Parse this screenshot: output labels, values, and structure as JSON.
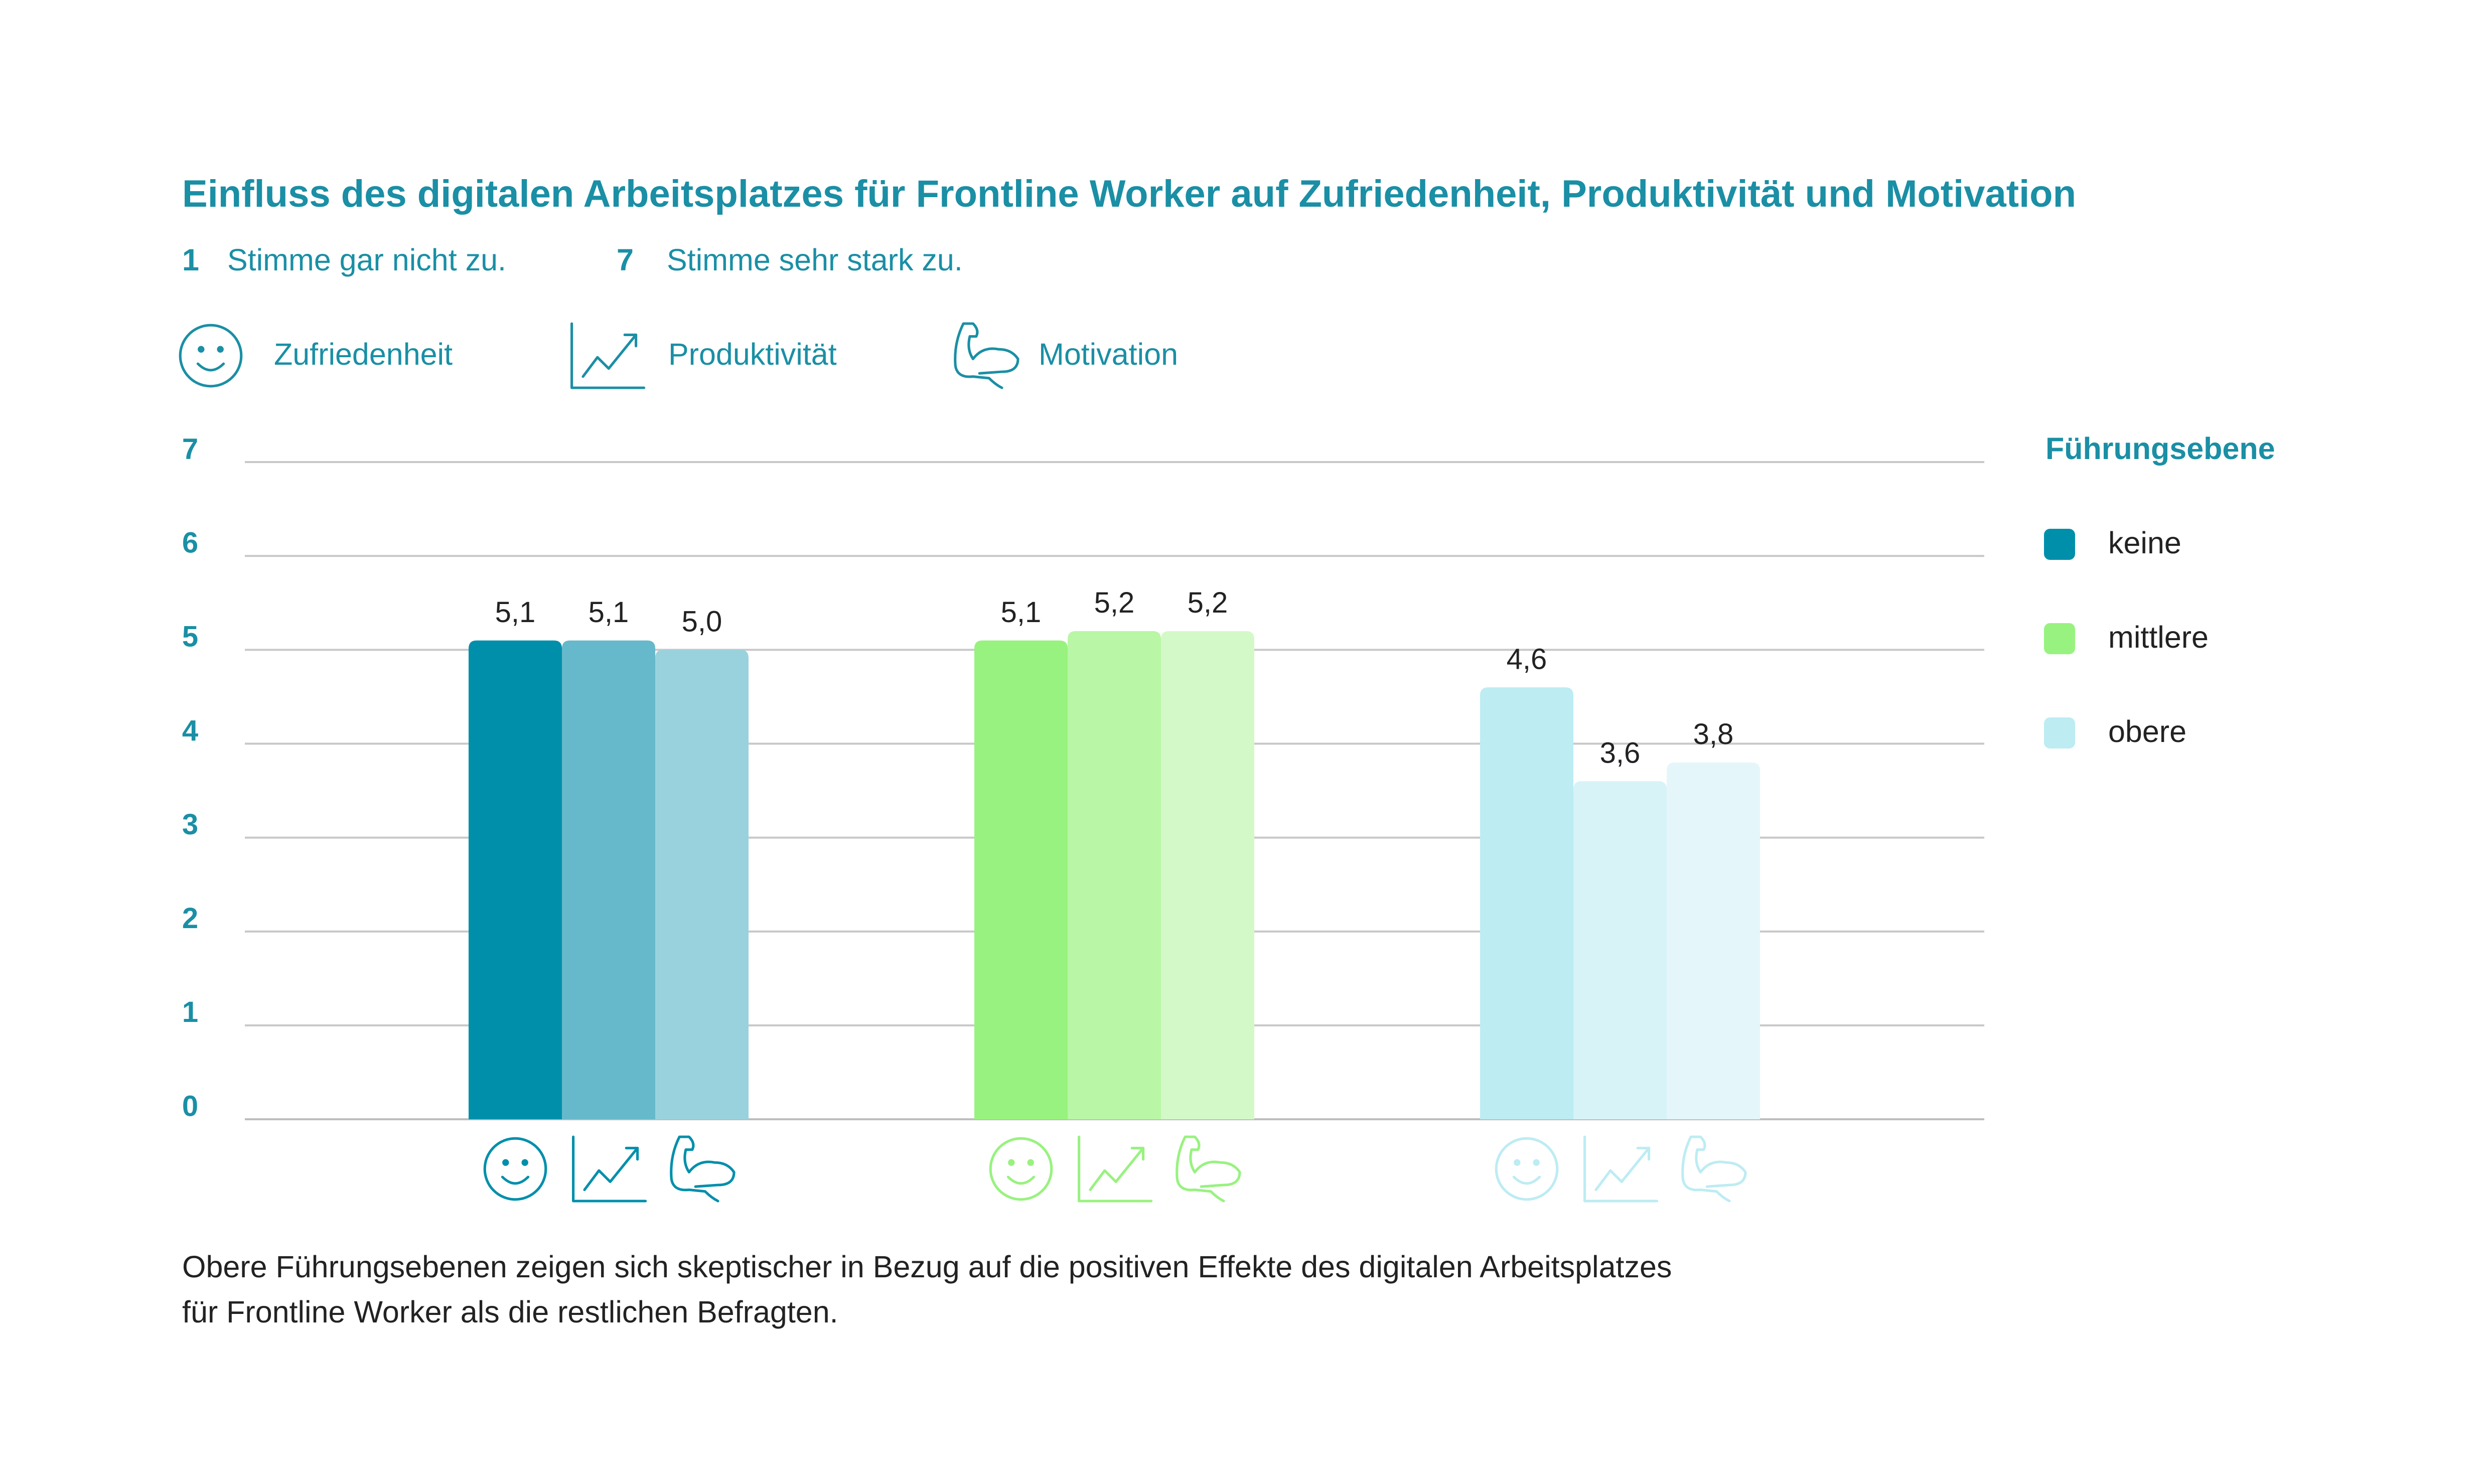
{
  "chart_data": {
    "type": "bar",
    "title": "Einfluss des digitalen Arbeitsplatzes für Frontline Worker auf Zufriedenheit, Produktivität und Motivation",
    "scale_notes": [
      {
        "label": "1",
        "text": "Stimme gar nicht zu."
      },
      {
        "label": "7",
        "text": "Stimme sehr stark zu."
      }
    ],
    "categories": [
      "Zufriedenheit",
      "Produktivität",
      "Motivation"
    ],
    "legend_title": "Führungsebene",
    "series": [
      {
        "name": "keine",
        "colors": [
          "#008fab",
          "#66b9cb",
          "#99d2dd"
        ],
        "values": [
          5.1,
          5.1,
          5.0
        ],
        "value_labels": [
          "5,1",
          "5,1",
          "5,0"
        ]
      },
      {
        "name": "mittlere",
        "colors": [
          "#98f27f",
          "#b9f6a6",
          "#d3f9c8"
        ],
        "values": [
          5.1,
          5.2,
          5.2
        ],
        "value_labels": [
          "5,1",
          "5,2",
          "5,2"
        ]
      },
      {
        "name": "obere",
        "colors": [
          "#bdecf3",
          "#d7f3f8",
          "#e4f6fa"
        ],
        "values": [
          4.6,
          3.6,
          3.8
        ],
        "value_labels": [
          "4,6",
          "3,6",
          "3,8"
        ]
      }
    ],
    "ylim": [
      0,
      7
    ],
    "yticks": [
      0,
      1,
      2,
      3,
      4,
      5,
      6,
      7
    ],
    "grid": true,
    "legend_position": "right",
    "footnote": [
      "Obere Führungsebenen zeigen sich skeptischer in Bezug auf die positiven Effekte des digitalen Arbeitsplatzes",
      "für Frontline Worker als die restlichen Befragten."
    ]
  }
}
